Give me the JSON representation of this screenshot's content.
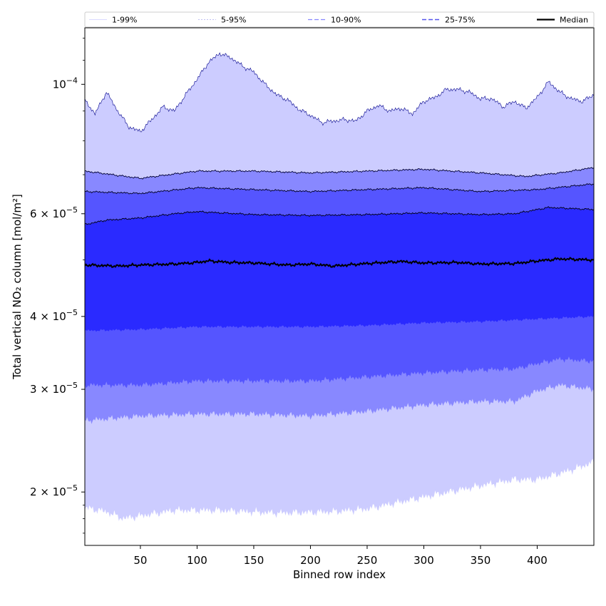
{
  "chart_data": {
    "type": "area",
    "xlabel": "Binned row index",
    "ylabel": "Total vertical NO₂ column [mol/m²]",
    "xlim": [
      1,
      450
    ],
    "ylim": [
      1.62e-05,
      0.000125
    ],
    "y_scale": "log",
    "grid": false,
    "legend_position": "top, spanning width, outside plot",
    "x_ticks": [
      50,
      100,
      150,
      200,
      250,
      300,
      350,
      400
    ],
    "y_ticks": [
      {
        "value": 2e-05,
        "mant": "2",
        "exp": "−5"
      },
      {
        "value": 3e-05,
        "mant": "3",
        "exp": "−5"
      },
      {
        "value": 4e-05,
        "mant": "4",
        "exp": "−5"
      },
      {
        "value": 6e-05,
        "mant": "6",
        "exp": "−5"
      },
      {
        "value": 0.0001,
        "mant": "10",
        "exp": "−4"
      }
    ],
    "legend": [
      {
        "label": "1-99%",
        "color": "#ccccff",
        "dash": "none",
        "width": 0.7
      },
      {
        "label": "5-95%",
        "color": "#aaaaee",
        "dash": "2,2",
        "width": 0.7
      },
      {
        "label": "10-90%",
        "color": "#8888ff",
        "dash": "6,3",
        "width": 1.2
      },
      {
        "label": "25-75%",
        "color": "#5555ee",
        "dash": "6,3",
        "width": 1.5
      },
      {
        "label": "Median",
        "color": "#000000",
        "dash": "none",
        "width": 2.2
      }
    ],
    "bands": [
      {
        "name": "1-99%",
        "fill": "#ccccff",
        "lower": {
          "x": [
            1,
            20,
            35,
            50,
            80,
            120,
            170,
            220,
            250,
            300,
            350,
            380,
            400,
            430,
            450
          ],
          "y": [
            1.88e-05,
            1.85e-05,
            1.8e-05,
            1.82e-05,
            1.86e-05,
            1.86e-05,
            1.84e-05,
            1.85e-05,
            1.87e-05,
            1.96e-05,
            2.05e-05,
            2.1e-05,
            2.1e-05,
            2.18e-05,
            2.25e-05
          ]
        },
        "upper": {
          "x": [
            1,
            10,
            20,
            30,
            40,
            50,
            60,
            70,
            80,
            90,
            100,
            110,
            120,
            130,
            140,
            150,
            160,
            170,
            180,
            190,
            200,
            210,
            220,
            230,
            240,
            250,
            260,
            270,
            280,
            290,
            300,
            310,
            320,
            330,
            340,
            350,
            360,
            370,
            380,
            390,
            400,
            410,
            420,
            430,
            440,
            450
          ],
          "y": [
            9.4e-05,
            8.9e-05,
            9.7e-05,
            9e-05,
            8.45e-05,
            8.3e-05,
            8.7e-05,
            9.15e-05,
            9e-05,
            9.6e-05,
            0.000102,
            0.000109,
            0.000113,
            0.000111,
            0.0001075,
            0.000105,
            0.0001,
            9.6e-05,
            9.4e-05,
            9.05e-05,
            8.85e-05,
            8.6e-05,
            8.65e-05,
            8.7e-05,
            8.65e-05,
            9e-05,
            9.2e-05,
            9e-05,
            9.1e-05,
            8.9e-05,
            9.35e-05,
            9.5e-05,
            9.8e-05,
            9.8e-05,
            9.7e-05,
            9.45e-05,
            9.45e-05,
            9.15e-05,
            9.35e-05,
            9.1e-05,
            9.5e-05,
            0.000101,
            9.7e-05,
            9.45e-05,
            9.35e-05,
            9.6e-05
          ]
        }
      },
      {
        "name": "5-95%",
        "fill": "#8888ff",
        "lower": {
          "x": [
            1,
            50,
            100,
            150,
            200,
            250,
            300,
            350,
            380,
            400,
            420,
            450
          ],
          "y": [
            2.65e-05,
            2.7e-05,
            2.72e-05,
            2.72e-05,
            2.7e-05,
            2.75e-05,
            2.82e-05,
            2.86e-05,
            2.86e-05,
            2.98e-05,
            3.05e-05,
            3e-05
          ]
        },
        "upper": {
          "x": [
            1,
            50,
            100,
            150,
            200,
            250,
            300,
            350,
            390,
            420,
            450
          ],
          "y": [
            7.1e-05,
            6.9e-05,
            7.1e-05,
            7.1e-05,
            7.05e-05,
            7.1e-05,
            7.15e-05,
            7.05e-05,
            6.95e-05,
            7.05e-05,
            7.2e-05
          ]
        }
      },
      {
        "name": "10-90%",
        "fill": "#5555ff",
        "lower": {
          "x": [
            1,
            50,
            100,
            150,
            200,
            250,
            300,
            350,
            380,
            400,
            420,
            450
          ],
          "y": [
            3.05e-05,
            3.05e-05,
            3.1e-05,
            3.1e-05,
            3.1e-05,
            3.15e-05,
            3.2e-05,
            3.24e-05,
            3.25e-05,
            3.32e-05,
            3.38e-05,
            3.35e-05
          ]
        },
        "upper": {
          "x": [
            1,
            50,
            100,
            150,
            200,
            250,
            300,
            350,
            400,
            450
          ],
          "y": [
            6.55e-05,
            6.5e-05,
            6.65e-05,
            6.6e-05,
            6.55e-05,
            6.6e-05,
            6.65e-05,
            6.55e-05,
            6.6e-05,
            6.75e-05
          ]
        }
      },
      {
        "name": "25-75%",
        "fill": "#2a2aff",
        "lower": {
          "x": [
            1,
            50,
            100,
            150,
            200,
            250,
            300,
            350,
            400,
            450
          ],
          "y": [
            3.78e-05,
            3.8e-05,
            3.84e-05,
            3.84e-05,
            3.84e-05,
            3.86e-05,
            3.9e-05,
            3.92e-05,
            3.96e-05,
            4e-05
          ]
        },
        "upper": {
          "x": [
            1,
            20,
            50,
            80,
            100,
            150,
            200,
            250,
            300,
            350,
            380,
            410,
            450
          ],
          "y": [
            5.75e-05,
            5.85e-05,
            5.9e-05,
            6e-05,
            6.05e-05,
            5.98e-05,
            5.96e-05,
            5.98e-05,
            6.02e-05,
            5.98e-05,
            6e-05,
            6.15e-05,
            6.1e-05
          ]
        }
      }
    ],
    "median": {
      "x": [
        1,
        30,
        50,
        80,
        100,
        110,
        130,
        150,
        180,
        200,
        220,
        250,
        280,
        300,
        330,
        350,
        380,
        400,
        420,
        450
      ],
      "y": [
        4.9e-05,
        4.88e-05,
        4.9e-05,
        4.92e-05,
        4.95e-05,
        4.98e-05,
        4.95e-05,
        4.94e-05,
        4.9e-05,
        4.92e-05,
        4.88e-05,
        4.93e-05,
        4.97e-05,
        4.94e-05,
        4.95e-05,
        4.92e-05,
        4.93e-05,
        4.98e-05,
        5.02e-05,
        5e-05
      ]
    }
  }
}
